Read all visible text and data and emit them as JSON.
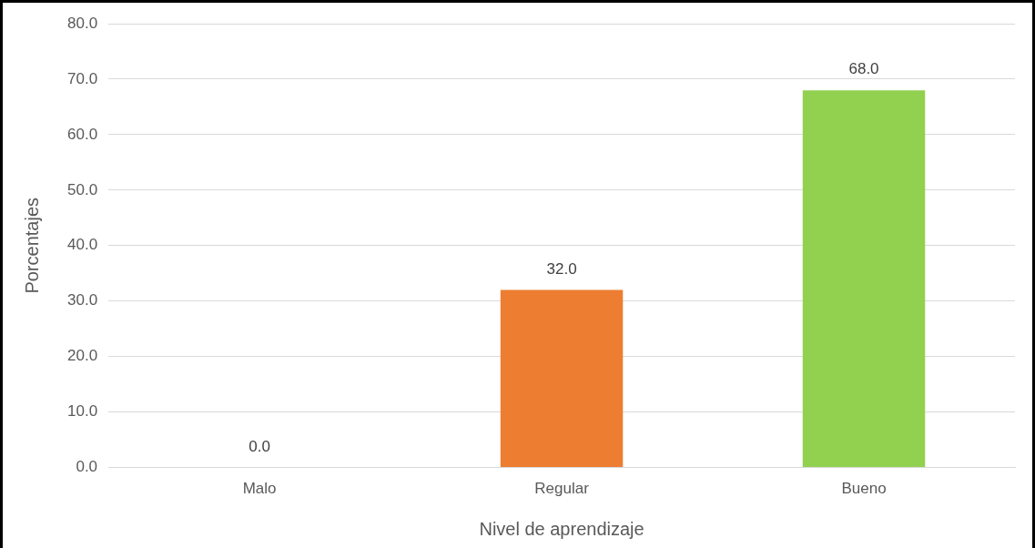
{
  "chart_data": {
    "type": "bar",
    "xlabel": "Nivel de aprendizaje",
    "ylabel": "Porcentajes",
    "categories": [
      "Malo",
      "Regular",
      "Bueno"
    ],
    "values": [
      0,
      32,
      68
    ],
    "colors": [
      "#4472c4",
      "#ed7d31",
      "#92d050"
    ],
    "value_labels": [
      "0.0",
      "32.0",
      "68.0"
    ],
    "ylim": [
      0,
      80
    ],
    "yticks": [
      {
        "value": 0,
        "label": "0.0"
      },
      {
        "value": 10,
        "label": "10.0"
      },
      {
        "value": 20,
        "label": "20.0"
      },
      {
        "value": 30,
        "label": "30.0"
      },
      {
        "value": 40,
        "label": "40.0"
      },
      {
        "value": 50,
        "label": "50.0"
      },
      {
        "value": 60,
        "label": "60.0"
      },
      {
        "value": 70,
        "label": "70.0"
      },
      {
        "value": 80,
        "label": "80.0"
      }
    ],
    "grid": "y",
    "legend": false
  }
}
